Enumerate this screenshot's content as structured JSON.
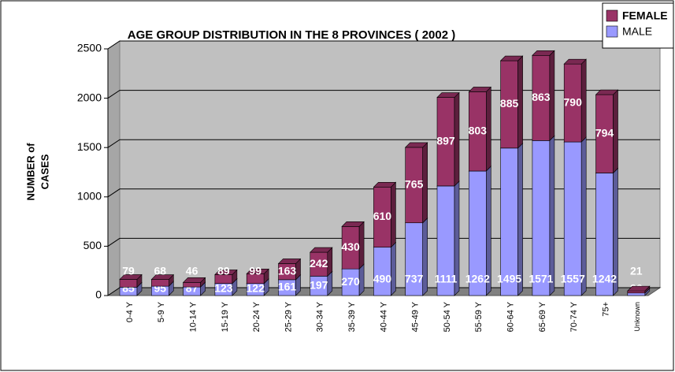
{
  "chart_data": {
    "type": "bar",
    "stacked": true,
    "title": "AGE GROUP DISTRIBUTION IN THE 8 PROVINCES ( 2002 )",
    "y_label": [
      "NUMBER of",
      "CASES"
    ],
    "categories": [
      "0-4 Y",
      "5-9 Y",
      "10-14 Y",
      "15-19 Y",
      "20-24 Y",
      "25-29 Y",
      "30-34 Y",
      "35-39 Y",
      "40-44 Y",
      "45-49 Y",
      "50-54 Y",
      "55-59 Y",
      "60-64 Y",
      "65-69 Y",
      "70-74 Y",
      "75+",
      "Unknown"
    ],
    "series": [
      {
        "name": "MALE",
        "color": "#9999ff",
        "values": [
          85,
          95,
          87,
          123,
          122,
          161,
          197,
          270,
          490,
          737,
          1111,
          1262,
          1495,
          1571,
          1557,
          1242,
          26
        ]
      },
      {
        "name": "FEMALE",
        "color": "#993366",
        "values": [
          79,
          68,
          46,
          89,
          99,
          163,
          242,
          430,
          610,
          765,
          897,
          803,
          885,
          863,
          790,
          794,
          21
        ]
      }
    ],
    "ylim": [
      0,
      2500
    ],
    "yticks": [
      0,
      500,
      1000,
      1500,
      2000,
      2500
    ],
    "grid": true,
    "legend": "top-right"
  }
}
